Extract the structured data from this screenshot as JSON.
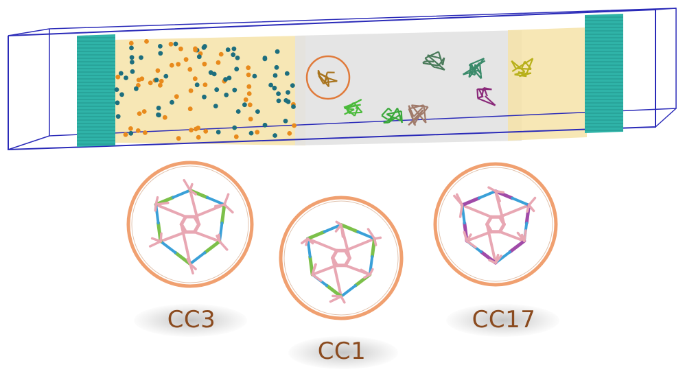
{
  "figure": {
    "cages": [
      {
        "id": "cc3",
        "label": "CC3"
      },
      {
        "id": "cc1",
        "label": "CC1"
      },
      {
        "id": "cc17",
        "label": "CC17"
      }
    ],
    "colors": {
      "box_outline": "#2a2ab8",
      "wall": "#2fb3a8",
      "solvent": "#f4dd9a",
      "membrane": "#c9c9c9",
      "ion_orange": "#e88a1c",
      "ion_teal": "#1d6e7e",
      "circle_outline": "#f0a070",
      "label": "#8a4a1e",
      "bond_pink": "#e8a7b3",
      "bond_green": "#7cc04a",
      "bond_blue": "#3aa0d8",
      "bond_purple": "#a04aa8"
    }
  }
}
